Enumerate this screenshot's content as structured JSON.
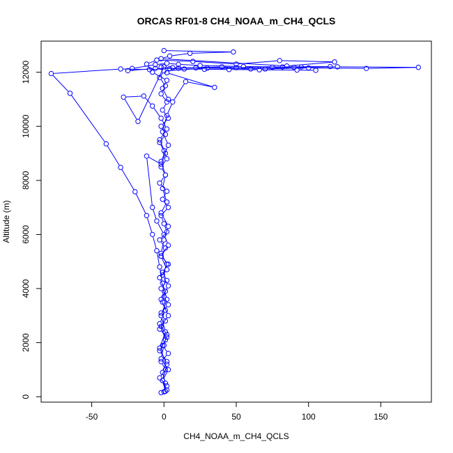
{
  "chart_data": {
    "type": "line",
    "title": "ORCAS RF01-8 CH4_NOAA_m_CH4_QCLS",
    "xlabel": "CH4_NOAA_m_CH4_QCLS",
    "ylabel": "Altitude (m)",
    "xlim": [
      -85,
      185
    ],
    "ylim": [
      -200,
      13150
    ],
    "xticks": [
      -50,
      0,
      50,
      100,
      150
    ],
    "yticks": [
      0,
      2000,
      4000,
      6000,
      8000,
      10000,
      12000
    ],
    "marker": "open-circle",
    "grid": false,
    "legend": "none",
    "color": "#0000ff",
    "series": [
      {
        "points": [
          [
            -2,
            150
          ],
          [
            2,
            400
          ],
          [
            -3,
            700
          ],
          [
            1,
            1000
          ],
          [
            -2,
            1300
          ],
          [
            3,
            1600
          ],
          [
            -1,
            1900
          ],
          [
            2,
            2200
          ],
          [
            -3,
            2500
          ],
          [
            1,
            2800
          ],
          [
            -2,
            3100
          ],
          [
            3,
            3400
          ],
          [
            0,
            3700
          ],
          [
            -2,
            4000
          ],
          [
            2,
            4300
          ],
          [
            -1,
            4600
          ],
          [
            3,
            4900
          ],
          [
            -2,
            5200
          ],
          [
            1,
            5500
          ],
          [
            -3,
            5800
          ],
          [
            2,
            6100
          ],
          [
            0,
            6400
          ],
          [
            -2,
            6700
          ],
          [
            3,
            7000
          ],
          [
            -1,
            7300
          ],
          [
            2,
            7600
          ],
          [
            -3,
            7900
          ],
          [
            1,
            8200
          ],
          [
            -2,
            8500
          ],
          [
            2,
            8800
          ],
          [
            0,
            9100
          ],
          [
            -3,
            9400
          ],
          [
            1,
            9700
          ],
          [
            -2,
            10000
          ],
          [
            3,
            10300
          ],
          [
            -1,
            10600
          ],
          [
            2,
            10900
          ],
          [
            -2,
            11200
          ],
          [
            1,
            11500
          ],
          [
            -3,
            11800
          ],
          [
            0,
            12050
          ],
          [
            30,
            12150
          ],
          [
            60,
            12120
          ],
          [
            90,
            12180
          ],
          [
            120,
            12200
          ],
          [
            176,
            12180
          ],
          [
            140,
            12140
          ],
          [
            100,
            12160
          ],
          [
            70,
            12120
          ],
          [
            40,
            12200
          ],
          [
            10,
            12150
          ],
          [
            -10,
            12100
          ],
          [
            -30,
            12120
          ],
          [
            -78,
            11950
          ],
          [
            -65,
            11220
          ],
          [
            -40,
            9350
          ],
          [
            -30,
            8480
          ],
          [
            -20,
            7580
          ],
          [
            -12,
            6700
          ],
          [
            -8,
            6000
          ],
          [
            -5,
            5400
          ],
          [
            -3,
            4800
          ],
          [
            -1,
            4200
          ],
          [
            2,
            3600
          ],
          [
            -2,
            3000
          ],
          [
            1,
            2400
          ],
          [
            -3,
            1800
          ],
          [
            2,
            1200
          ],
          [
            -1,
            600
          ],
          [
            1,
            200
          ]
        ]
      },
      {
        "points": [
          [
            0,
            12200
          ],
          [
            -18,
            10180
          ],
          [
            -28,
            11080
          ],
          [
            -14,
            11120
          ],
          [
            -8,
            10750
          ],
          [
            -2,
            10300
          ],
          [
            2,
            9900
          ],
          [
            -3,
            9500
          ],
          [
            1,
            9000
          ],
          [
            -2,
            8600
          ],
          [
            -12,
            8900
          ],
          [
            -8,
            7000
          ],
          [
            -5,
            6500
          ],
          [
            0,
            6000
          ],
          [
            3,
            5600
          ],
          [
            -2,
            5200
          ],
          [
            2,
            4700
          ],
          [
            -3,
            4400
          ],
          [
            1,
            3900
          ],
          [
            -1,
            3500
          ],
          [
            3,
            3000
          ],
          [
            -2,
            2600
          ],
          [
            1,
            2100
          ],
          [
            -3,
            1700
          ],
          [
            2,
            1300
          ],
          [
            -1,
            900
          ],
          [
            1,
            500
          ],
          [
            0,
            180
          ]
        ]
      },
      {
        "points": [
          [
            2,
            11980
          ],
          [
            35,
            11440
          ],
          [
            15,
            11650
          ],
          [
            6,
            10900
          ],
          [
            2,
            10400
          ],
          [
            -1,
            9800
          ],
          [
            3,
            9300
          ],
          [
            -2,
            8700
          ],
          [
            1,
            8200
          ],
          [
            -1,
            7700
          ],
          [
            2,
            7200
          ],
          [
            -2,
            6800
          ],
          [
            3,
            6300
          ],
          [
            0,
            5800
          ],
          [
            -2,
            5300
          ],
          [
            2,
            4900
          ],
          [
            -1,
            4500
          ],
          [
            3,
            4100
          ],
          [
            -2,
            3600
          ],
          [
            1,
            3200
          ],
          [
            -3,
            2700
          ],
          [
            2,
            2300
          ],
          [
            0,
            1900
          ],
          [
            -2,
            1400
          ],
          [
            3,
            1000
          ],
          [
            -1,
            600
          ],
          [
            2,
            250
          ]
        ]
      },
      {
        "points": [
          [
            0,
            12800
          ],
          [
            48,
            12750
          ],
          [
            18,
            12700
          ],
          [
            4,
            12600
          ],
          [
            -2,
            12500
          ],
          [
            85,
            12230
          ],
          [
            118,
            12380
          ],
          [
            80,
            12430
          ],
          [
            50,
            12300
          ],
          [
            20,
            12400
          ],
          [
            -5,
            12450
          ],
          [
            -12,
            12300
          ],
          [
            -8,
            12000
          ],
          [
            2,
            11700
          ],
          [
            -1,
            11400
          ],
          [
            3,
            11000
          ]
        ]
      },
      {
        "points": [
          [
            105,
            12070
          ],
          [
            92,
            12080
          ],
          [
            66,
            12090
          ],
          [
            45,
            12100
          ],
          [
            28,
            12110
          ],
          [
            14,
            12120
          ],
          [
            4,
            12130
          ],
          [
            -6,
            12140
          ],
          [
            -25,
            12060
          ],
          [
            -22,
            12140
          ],
          [
            -6,
            12280
          ],
          [
            2,
            12330
          ],
          [
            10,
            12290
          ],
          [
            25,
            12250
          ],
          [
            55,
            12210
          ],
          [
            82,
            12195
          ],
          [
            115,
            12210
          ],
          [
            95,
            12195
          ],
          [
            75,
            12185
          ],
          [
            50,
            12170
          ],
          [
            22,
            12160
          ],
          [
            6,
            12170
          ],
          [
            -2,
            12190
          ]
        ]
      }
    ]
  }
}
